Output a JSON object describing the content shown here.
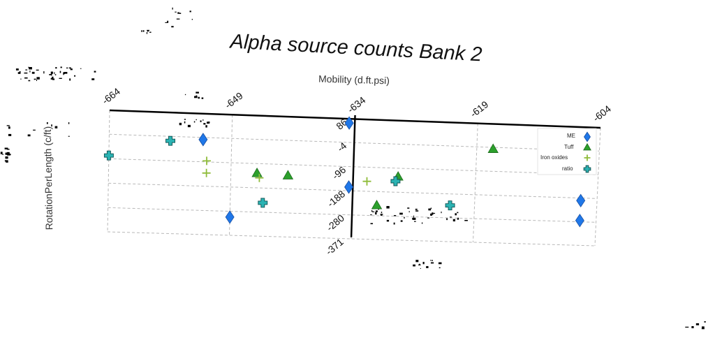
{
  "chart_data": {
    "type": "scatter",
    "title": "Alpha source counts Bank 2",
    "xlabel": "Mobility (d.ft.psi)",
    "ylabel": "RotationPerLength (c/ft)",
    "xlim": [
      -664,
      -604
    ],
    "ylim": [
      -371,
      86
    ],
    "x_ticks": [
      "-664",
      "-649",
      "-634",
      "-619",
      "-604"
    ],
    "y_ticks": [
      "86",
      "-4",
      "-96",
      "-188",
      "-280",
      "-371"
    ],
    "grid": true,
    "legend_position": "top-right",
    "series": [
      {
        "name": "ME",
        "marker": "diamond",
        "color": "#1f77e8",
        "points": [
          {
            "x": -634.7,
            "y": 70
          },
          {
            "x": -652.5,
            "y": -12
          },
          {
            "x": -634.5,
            "y": -174
          },
          {
            "x": -649.0,
            "y": -302
          },
          {
            "x": -606.0,
            "y": -198
          },
          {
            "x": -606.0,
            "y": -275
          }
        ]
      },
      {
        "name": "Tuff",
        "marker": "triangle",
        "color": "#2ca02c",
        "points": [
          {
            "x": -617.0,
            "y": -10
          },
          {
            "x": -645.8,
            "y": -132
          },
          {
            "x": -642.0,
            "y": -137
          },
          {
            "x": -628.5,
            "y": -128
          },
          {
            "x": -631.0,
            "y": -240
          }
        ]
      },
      {
        "name": "Iron oxides",
        "marker": "plus",
        "color": "#8fbc3a",
        "points": [
          {
            "x": -652.0,
            "y": -92
          },
          {
            "x": -652.0,
            "y": -138
          },
          {
            "x": -645.5,
            "y": -150
          },
          {
            "x": -632.3,
            "y": -150
          }
        ]
      },
      {
        "name": "ratio",
        "marker": "cross",
        "color": "#2bb3b3",
        "points": [
          {
            "x": -664.0,
            "y": -84
          },
          {
            "x": -656.5,
            "y": -21
          },
          {
            "x": -645.0,
            "y": -244
          },
          {
            "x": -628.8,
            "y": -146
          },
          {
            "x": -622.0,
            "y": -232
          }
        ]
      }
    ]
  }
}
